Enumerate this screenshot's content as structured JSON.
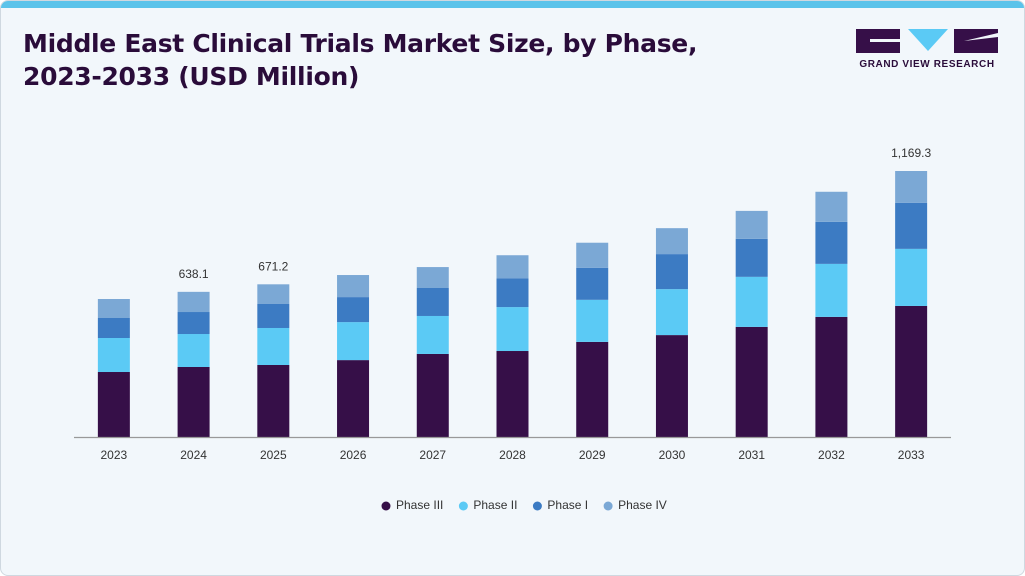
{
  "chart_data": {
    "type": "stacked_bar",
    "title": "Middle East Clinical Trials Market Size, by Phase, 2023-2033 (USD Million)",
    "brand": "GRAND VIEW RESEARCH",
    "categories": [
      "2023",
      "2024",
      "2025",
      "2026",
      "2027",
      "2028",
      "2029",
      "2030",
      "2031",
      "2032",
      "2033"
    ],
    "series": [
      {
        "name": "Phase III",
        "color": "#360f48",
        "values": [
          285.7,
          307.7,
          316.5,
          338,
          365,
          378,
          418,
          448,
          484,
          528,
          576
        ]
      },
      {
        "name": "Phase II",
        "color": "#5bcaf5",
        "values": [
          149.5,
          145,
          162.7,
          167,
          167,
          193,
          185,
          202,
          220,
          233,
          251
        ]
      },
      {
        "name": "Phase I",
        "color": "#3c7bc3",
        "values": [
          87.9,
          96.7,
          105.5,
          110,
          123,
          127,
          141,
          154,
          167,
          185,
          202
        ]
      },
      {
        "name": "Phase IV",
        "color": "#7ba8d5",
        "values": [
          83.5,
          88.7,
          86.5,
          97,
          92,
          101,
          110,
          114,
          123,
          132,
          140.3
        ]
      }
    ],
    "annotations": [
      {
        "category": "2024",
        "value": 638.1
      },
      {
        "category": "2025",
        "value": 671.2
      },
      {
        "category": "2033",
        "value": 1169.3,
        "value_label": "1,169.3"
      }
    ],
    "legend": "bottom"
  }
}
